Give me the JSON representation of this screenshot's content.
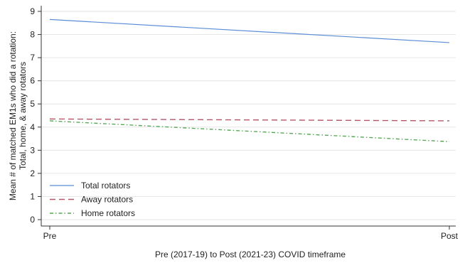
{
  "chart_data": {
    "type": "line",
    "categories": [
      "Pre",
      "Post"
    ],
    "series": [
      {
        "name": "Total rotators",
        "values": [
          8.65,
          7.65
        ],
        "color": "#5b8dd6",
        "dash": "solid"
      },
      {
        "name": "Away rotators",
        "values": [
          4.35,
          4.27
        ],
        "color": "#b5566a",
        "dash": "dashed"
      },
      {
        "name": "Home rotators",
        "values": [
          4.27,
          3.37
        ],
        "color": "#57a957",
        "dash": "dashdot"
      }
    ],
    "xlabel": "Pre (2017-19) to Post (2021-23) COVID timeframe",
    "ylabel_lines": [
      "Mean # of matched EM1s who did a rotation:",
      "Total, home, & away rotators"
    ],
    "ylim": [
      0,
      9
    ],
    "yticks": [
      0,
      1,
      2,
      3,
      4,
      5,
      6,
      7,
      8,
      9
    ],
    "grid": true,
    "legend_position": "bottom-left"
  }
}
